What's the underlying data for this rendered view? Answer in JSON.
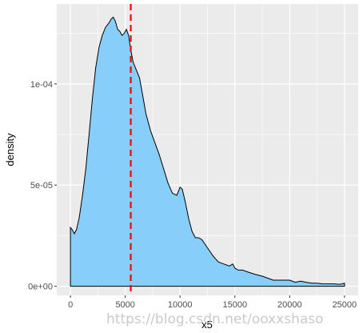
{
  "chart_data": {
    "type": "area",
    "xlabel": "x5",
    "ylabel": "density",
    "xlim": [
      -1250,
      26250
    ],
    "ylim": [
      -4.5e-06,
      0.0001395
    ],
    "x_ticks": [
      0,
      5000,
      10000,
      15000,
      20000,
      25000
    ],
    "x_tick_labels": [
      "0",
      "5000",
      "10000",
      "15000",
      "20000",
      "25000"
    ],
    "y_ticks": [
      0,
      5e-05,
      0.0001
    ],
    "y_tick_labels": [
      "0e+00",
      "5e-05",
      "1e-04"
    ],
    "grid": true,
    "series": [
      {
        "fill": "#87CEFA",
        "outline": "#000000",
        "x": [
          0,
          150,
          350,
          550,
          800,
          1100,
          1400,
          1700,
          2000,
          2300,
          2600,
          2900,
          3200,
          3500,
          3700,
          3900,
          4100,
          4300,
          4500,
          4700,
          4900,
          5100,
          5300,
          5500,
          5700,
          6000,
          6300,
          6600,
          6900,
          7300,
          7700,
          8100,
          8500,
          8900,
          9300,
          9700,
          10000,
          10200,
          10500,
          10800,
          11100,
          11400,
          11700,
          12000,
          12500,
          13000,
          13500,
          14000,
          14500,
          14800,
          15000,
          15300,
          15700,
          16200,
          16800,
          17500,
          18000,
          18500,
          19000,
          19500,
          20000,
          20500,
          21000,
          21500,
          22000,
          22500,
          23000,
          23500,
          24000,
          24500,
          24800,
          25000
        ],
        "y": [
          2.9e-05,
          2.8e-05,
          2.6e-05,
          2.8e-05,
          3.4e-05,
          4.5e-05,
          5.8e-05,
          7.5e-05,
          9.3e-05,
          0.000108,
          0.000118,
          0.000124,
          0.000128,
          0.00013,
          0.000132,
          0.000133,
          0.000131,
          0.000127,
          0.000126,
          0.000124,
          0.000125,
          0.000127,
          0.000124,
          0.000117,
          0.000111,
          0.000107,
          0.000103,
          9.4e-05,
          8.5e-05,
          7.7e-05,
          7.1e-05,
          6.5e-05,
          5.8e-05,
          5.1e-05,
          4.6e-05,
          4.5e-05,
          4.9e-05,
          4.8e-05,
          4.1e-05,
          3.3e-05,
          2.7e-05,
          2.4e-05,
          2.4e-05,
          2.3e-05,
          1.9e-05,
          1.5e-05,
          1.2e-05,
          1.1e-05,
          1e-05,
          1.1e-05,
          9e-06,
          8e-06,
          8e-06,
          7e-06,
          6e-06,
          5e-06,
          4e-06,
          3e-06,
          3e-06,
          3e-06,
          3e-06,
          2e-06,
          2.5e-06,
          2e-06,
          1.5e-06,
          1.5e-06,
          1.2e-06,
          1.2e-06,
          1.2e-06,
          1e-06,
          1.2e-06,
          1.5e-06
        ]
      }
    ],
    "annotations": [
      {
        "type": "vline",
        "x": 5500,
        "color": "#FF0000",
        "linetype": "dashed"
      }
    ],
    "panel_background": "#EBEBEB",
    "grid_color": "#FFFFFF"
  },
  "watermark": "https://blog.csdn.net/ooxxshaso"
}
